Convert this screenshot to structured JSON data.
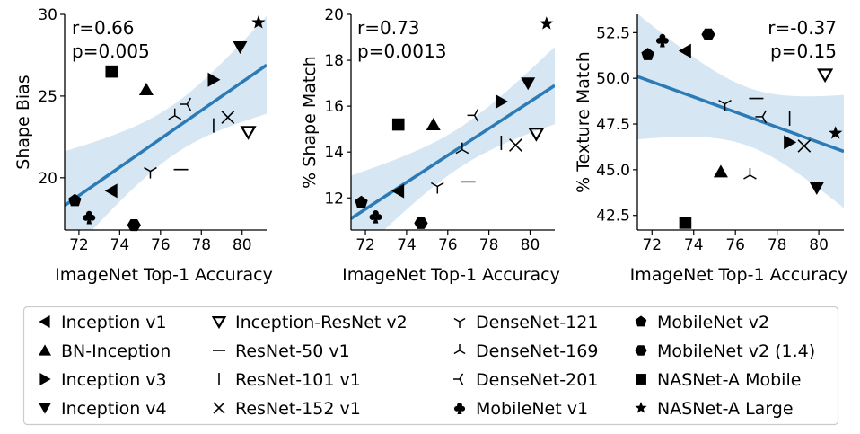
{
  "chart_data": [
    {
      "type": "scatter",
      "xlabel": "ImageNet Top-1 Accuracy",
      "ylabel": "Shape Bias",
      "annotation": [
        "r=0.66",
        "p=0.005"
      ],
      "annotation_position": "top-left",
      "xlim": [
        71.3,
        81.2
      ],
      "ylim": [
        16.8,
        30.0
      ],
      "xticks": [
        72,
        74,
        76,
        78,
        80
      ],
      "xtick_labels": [
        "72",
        "74",
        "76",
        "78",
        "80"
      ],
      "yticks": [
        20,
        25,
        30
      ],
      "ytick_labels": [
        "20",
        "25",
        "30"
      ],
      "grid": false,
      "fit_line": {
        "x": [
          71.3,
          81.2
        ],
        "y": [
          18.3,
          26.9
        ]
      },
      "points": [
        {
          "model": "Inception v1",
          "x": 73.6,
          "y": 19.2
        },
        {
          "model": "BN-Inception",
          "x": 75.3,
          "y": 25.4
        },
        {
          "model": "Inception v3",
          "x": 78.6,
          "y": 26.0
        },
        {
          "model": "Inception v4",
          "x": 79.9,
          "y": 28.0
        },
        {
          "model": "Inception-ResNet v2",
          "x": 80.3,
          "y": 22.8
        },
        {
          "model": "ResNet-50 v1",
          "x": 77.0,
          "y": 20.5
        },
        {
          "model": "ResNet-101 v1",
          "x": 78.6,
          "y": 23.2
        },
        {
          "model": "ResNet-152 v1",
          "x": 79.3,
          "y": 23.7
        },
        {
          "model": "DenseNet-121",
          "x": 75.5,
          "y": 20.4
        },
        {
          "model": "DenseNet-169",
          "x": 76.7,
          "y": 23.8
        },
        {
          "model": "DenseNet-201",
          "x": 77.3,
          "y": 24.5
        },
        {
          "model": "MobileNet v1",
          "x": 72.5,
          "y": 17.6
        },
        {
          "model": "MobileNet v2",
          "x": 71.8,
          "y": 18.6
        },
        {
          "model": "MobileNet v2 (1.4)",
          "x": 74.7,
          "y": 17.1
        },
        {
          "model": "NASNet-A Mobile",
          "x": 73.6,
          "y": 26.5
        },
        {
          "model": "NASNet-A Large",
          "x": 80.8,
          "y": 29.5
        }
      ]
    },
    {
      "type": "scatter",
      "xlabel": "ImageNet Top-1 Accuracy",
      "ylabel": "% Shape Match",
      "annotation": [
        "r=0.73",
        "p=0.0013"
      ],
      "annotation_position": "top-left",
      "xlim": [
        71.3,
        81.2
      ],
      "ylim": [
        10.6,
        20.0
      ],
      "xticks": [
        72,
        74,
        76,
        78,
        80
      ],
      "xtick_labels": [
        "72",
        "74",
        "76",
        "78",
        "80"
      ],
      "yticks": [
        12,
        14,
        16,
        18,
        20
      ],
      "ytick_labels": [
        "12",
        "14",
        "16",
        "18",
        "20"
      ],
      "grid": false,
      "fit_line": {
        "x": [
          71.3,
          81.2
        ],
        "y": [
          11.1,
          16.9
        ]
      },
      "points": [
        {
          "model": "Inception v1",
          "x": 73.6,
          "y": 12.3
        },
        {
          "model": "BN-Inception",
          "x": 75.3,
          "y": 15.2
        },
        {
          "model": "Inception v3",
          "x": 78.6,
          "y": 16.2
        },
        {
          "model": "Inception v4",
          "x": 79.9,
          "y": 17.0
        },
        {
          "model": "Inception-ResNet v2",
          "x": 80.3,
          "y": 14.8
        },
        {
          "model": "ResNet-50 v1",
          "x": 77.0,
          "y": 12.7
        },
        {
          "model": "ResNet-101 v1",
          "x": 78.6,
          "y": 14.4
        },
        {
          "model": "ResNet-152 v1",
          "x": 79.3,
          "y": 14.3
        },
        {
          "model": "DenseNet-121",
          "x": 75.5,
          "y": 12.5
        },
        {
          "model": "DenseNet-169",
          "x": 76.7,
          "y": 14.1
        },
        {
          "model": "DenseNet-201",
          "x": 77.3,
          "y": 15.6
        },
        {
          "model": "MobileNet v1",
          "x": 72.5,
          "y": 11.2
        },
        {
          "model": "MobileNet v2",
          "x": 71.8,
          "y": 11.8
        },
        {
          "model": "MobileNet v2 (1.4)",
          "x": 74.7,
          "y": 10.9
        },
        {
          "model": "NASNet-A Mobile",
          "x": 73.6,
          "y": 15.2
        },
        {
          "model": "NASNet-A Large",
          "x": 80.8,
          "y": 19.6
        }
      ]
    },
    {
      "type": "scatter",
      "xlabel": "ImageNet Top-1 Accuracy",
      "ylabel": "% Texture Match",
      "annotation": [
        "r=-0.37",
        "p=0.15"
      ],
      "annotation_position": "top-right",
      "xlim": [
        71.3,
        81.2
      ],
      "ylim": [
        41.7,
        53.5
      ],
      "xticks": [
        72,
        74,
        76,
        78,
        80
      ],
      "xtick_labels": [
        "72",
        "74",
        "76",
        "78",
        "80"
      ],
      "yticks": [
        42.5,
        45.0,
        47.5,
        50.0,
        52.5
      ],
      "ytick_labels": [
        "42.5",
        "45.0",
        "47.5",
        "50.0",
        "52.5"
      ],
      "grid": false,
      "fit_line": {
        "x": [
          71.3,
          81.2
        ],
        "y": [
          50.1,
          46.0
        ]
      },
      "points": [
        {
          "model": "Inception v1",
          "x": 73.6,
          "y": 51.5
        },
        {
          "model": "BN-Inception",
          "x": 75.3,
          "y": 44.9
        },
        {
          "model": "Inception v3",
          "x": 78.6,
          "y": 46.5
        },
        {
          "model": "Inception v4",
          "x": 79.9,
          "y": 44.0
        },
        {
          "model": "Inception-ResNet v2",
          "x": 80.3,
          "y": 50.2
        },
        {
          "model": "ResNet-50 v1",
          "x": 77.0,
          "y": 48.9
        },
        {
          "model": "ResNet-101 v1",
          "x": 78.6,
          "y": 47.8
        },
        {
          "model": "ResNet-152 v1",
          "x": 79.3,
          "y": 46.3
        },
        {
          "model": "DenseNet-121",
          "x": 75.5,
          "y": 48.6
        },
        {
          "model": "DenseNet-169",
          "x": 76.7,
          "y": 44.7
        },
        {
          "model": "DenseNet-201",
          "x": 77.3,
          "y": 47.9
        },
        {
          "model": "MobileNet v1",
          "x": 72.5,
          "y": 52.1
        },
        {
          "model": "MobileNet v2",
          "x": 71.8,
          "y": 51.3
        },
        {
          "model": "MobileNet v2 (1.4)",
          "x": 74.7,
          "y": 52.4
        },
        {
          "model": "NASNet-A Mobile",
          "x": 73.6,
          "y": 42.1
        },
        {
          "model": "NASNet-A Large",
          "x": 80.8,
          "y": 47.0
        }
      ]
    }
  ],
  "legend": [
    {
      "label": "Inception v1",
      "marker": "triangle-left-icon"
    },
    {
      "label": "BN-Inception",
      "marker": "triangle-up-icon"
    },
    {
      "label": "Inception v3",
      "marker": "triangle-right-icon"
    },
    {
      "label": "Inception v4",
      "marker": "triangle-down-icon"
    },
    {
      "label": "Inception-ResNet v2",
      "marker": "open-triangle-down-icon"
    },
    {
      "label": "ResNet-50 v1",
      "marker": "hline-icon"
    },
    {
      "label": "ResNet-101 v1",
      "marker": "vline-icon"
    },
    {
      "label": "ResNet-152 v1",
      "marker": "x-icon"
    },
    {
      "label": "DenseNet-121",
      "marker": "tri-down-icon"
    },
    {
      "label": "DenseNet-169",
      "marker": "tri-up-icon"
    },
    {
      "label": "DenseNet-201",
      "marker": "tri-left-icon"
    },
    {
      "label": "MobileNet v1",
      "marker": "club-icon"
    },
    {
      "label": "MobileNet v2",
      "marker": "pentagon-icon"
    },
    {
      "label": "MobileNet v2 (1.4)",
      "marker": "hexagon-icon"
    },
    {
      "label": "NASNet-A Mobile",
      "marker": "square-icon"
    },
    {
      "label": "NASNet-A Large",
      "marker": "star-icon"
    }
  ],
  "colors": {
    "fit_line": "#2c7bb6",
    "band": "#d6e6f3",
    "marker": "#000000"
  }
}
